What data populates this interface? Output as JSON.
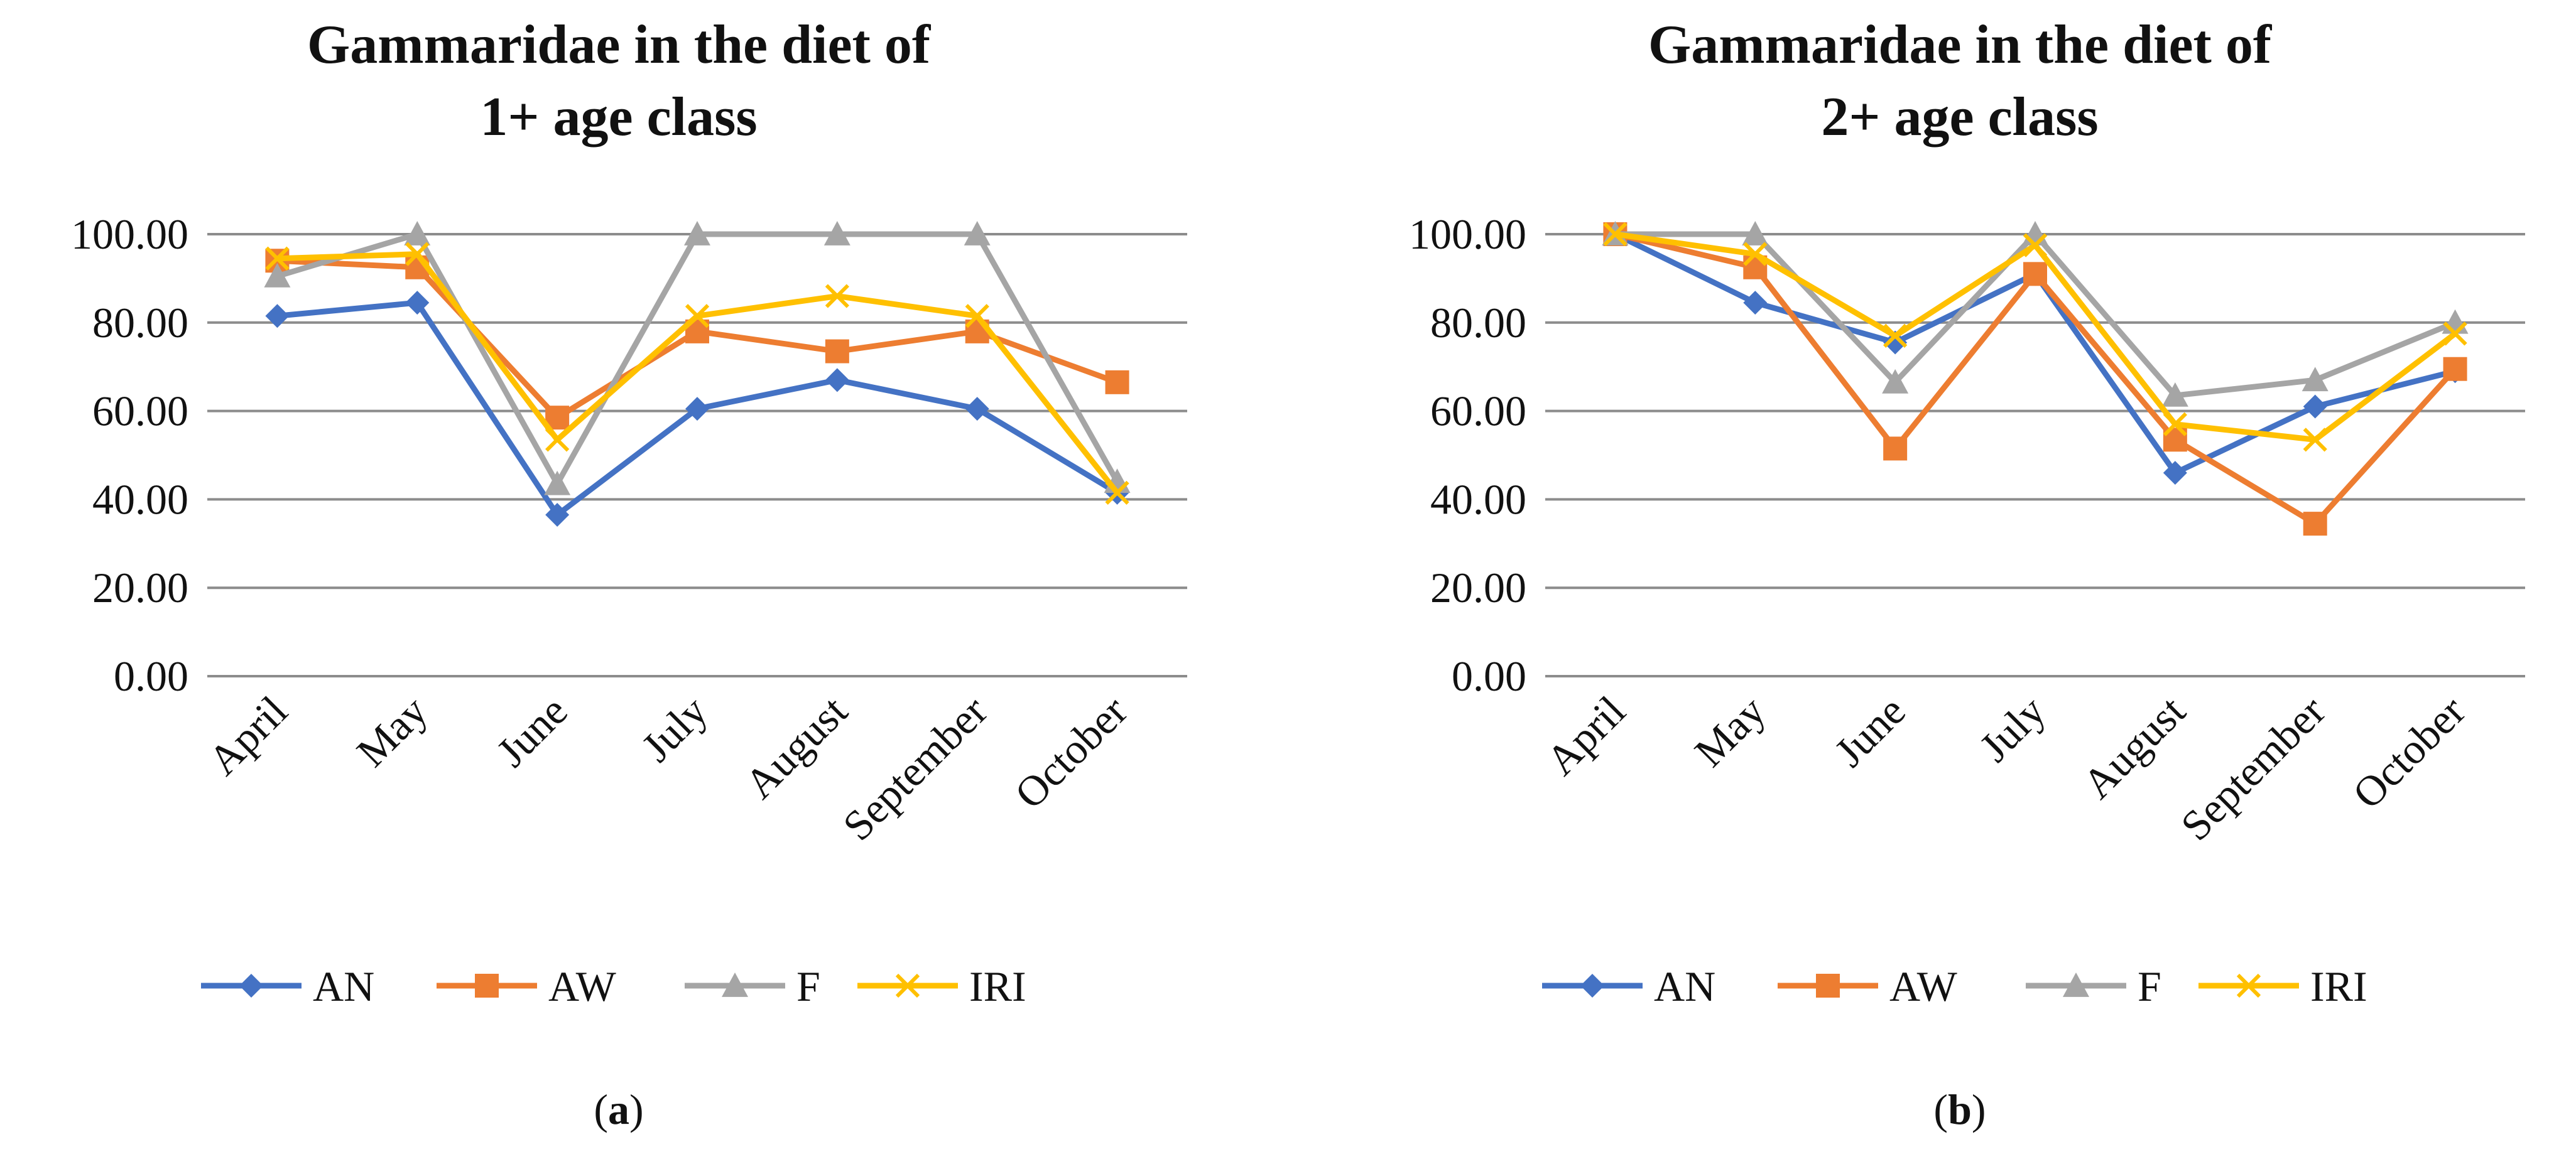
{
  "colors": {
    "AN": "#4472C4",
    "AW": "#ED7D31",
    "F": "#A5A5A5",
    "IRI": "#FFC000",
    "grid": "#8C8C8C"
  },
  "chart_data": [
    {
      "type": "line",
      "panel": "a",
      "panel_label": {
        "open": "(",
        "letter": "a",
        "close": ")"
      },
      "title_lines": [
        "Gammaridae in the diet of",
        "1+ age class"
      ],
      "xlabel": "",
      "ylabel": "",
      "ylim": [
        0,
        100
      ],
      "yticks": [
        "0.00",
        "20.00",
        "40.00",
        "60.00",
        "80.00",
        "100.00"
      ],
      "categories": [
        "April",
        "May",
        "June",
        "July",
        "August",
        "September",
        "October"
      ],
      "legend_position": "bottom",
      "series": [
        {
          "name": "AN",
          "marker": "diamond",
          "values": [
            81.5,
            84.5,
            36.5,
            60.5,
            67.0,
            60.5,
            41.5
          ]
        },
        {
          "name": "AW",
          "marker": "square",
          "values": [
            94.0,
            92.5,
            58.5,
            78.0,
            73.5,
            78.0,
            66.5
          ]
        },
        {
          "name": "F",
          "marker": "triangle",
          "values": [
            90.5,
            100.0,
            43.5,
            100.0,
            100.0,
            100.0,
            44.0
          ]
        },
        {
          "name": "IRI",
          "marker": "x",
          "values": [
            94.5,
            95.5,
            53.5,
            81.5,
            86.0,
            81.5,
            41.5
          ]
        }
      ]
    },
    {
      "type": "line",
      "panel": "b",
      "panel_label": {
        "open": "(",
        "letter": "b",
        "close": ")"
      },
      "title_lines": [
        "Gammaridae in the diet of",
        "2+ age class"
      ],
      "xlabel": "",
      "ylabel": "",
      "ylim": [
        0,
        100
      ],
      "yticks": [
        "0.00",
        "20.00",
        "40.00",
        "60.00",
        "80.00",
        "100.00"
      ],
      "categories": [
        "April",
        "May",
        "June",
        "July",
        "August",
        "September",
        "October"
      ],
      "legend_position": "bottom",
      "series": [
        {
          "name": "AN",
          "marker": "diamond",
          "values": [
            100.0,
            84.5,
            75.5,
            91.0,
            46.0,
            61.0,
            69.0
          ]
        },
        {
          "name": "AW",
          "marker": "square",
          "values": [
            100.0,
            92.5,
            51.5,
            91.0,
            53.5,
            34.5,
            69.5
          ]
        },
        {
          "name": "F",
          "marker": "triangle",
          "values": [
            100.0,
            100.0,
            66.5,
            100.0,
            63.5,
            67.0,
            80.0
          ]
        },
        {
          "name": "IRI",
          "marker": "x",
          "values": [
            100.0,
            95.5,
            77.0,
            97.5,
            57.0,
            53.5,
            77.5
          ]
        }
      ]
    }
  ]
}
